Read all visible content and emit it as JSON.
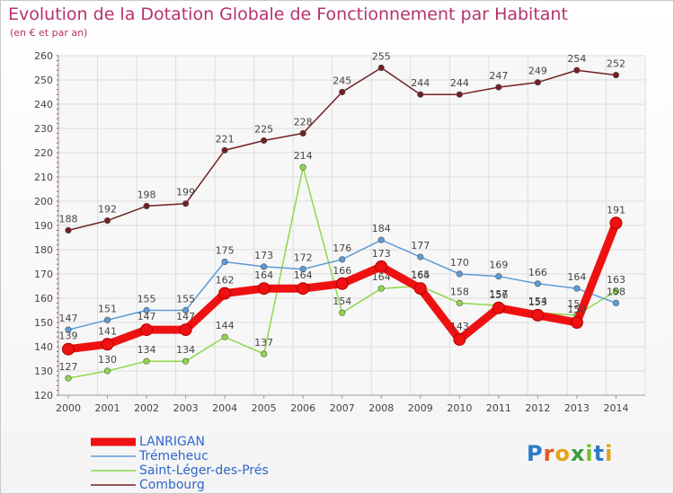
{
  "chart_data": {
    "type": "line",
    "title": "Evolution de la Dotation Globale de Fonctionnement par Habitant",
    "subtitle": "(en € et par an)",
    "categories": [
      "2000",
      "2001",
      "2002",
      "2003",
      "2004",
      "2005",
      "2006",
      "2007",
      "2008",
      "2009",
      "2010",
      "2011",
      "2012",
      "2013",
      "2014"
    ],
    "ylim": [
      120,
      260
    ],
    "yticks": [
      120,
      130,
      140,
      150,
      160,
      170,
      180,
      190,
      200,
      210,
      220,
      230,
      240,
      250,
      260
    ],
    "series": [
      {
        "name": "Combourg",
        "color": "#722020",
        "values": [
          188,
          192,
          198,
          199,
          221,
          225,
          228,
          245,
          255,
          244,
          244,
          247,
          249,
          254,
          252
        ],
        "labels": [
          "188",
          "192",
          "198",
          "199",
          "221",
          "225",
          "228",
          "245",
          "255",
          "244",
          "244",
          "247",
          "249",
          "254",
          "252"
        ]
      },
      {
        "name": "Saint-Léger-des-Prés",
        "color": "#8fd74a",
        "values": [
          127,
          130,
          134,
          134,
          144,
          137,
          214,
          154,
          164,
          165,
          158,
          157,
          154,
          153,
          163
        ],
        "labels": [
          "127",
          "130",
          "134",
          "134",
          "144",
          "137",
          "214",
          "154",
          "164",
          "165",
          "158",
          "157",
          "154",
          "153",
          "163"
        ]
      },
      {
        "name": "Trémeheuc",
        "color": "#5c9bd5",
        "values": [
          147,
          151,
          155,
          155,
          175,
          173,
          172,
          176,
          184,
          177,
          170,
          169,
          166,
          164,
          158
        ],
        "labels": [
          "147",
          "151",
          "155",
          "155",
          "175",
          "173",
          "172",
          "176",
          "184",
          "177",
          "170",
          "169",
          "166",
          "164",
          "158"
        ]
      },
      {
        "name": "LANRIGAN",
        "color": "#ee1111",
        "values": [
          139,
          141,
          147,
          147,
          162,
          164,
          164,
          166,
          173,
          164,
          143,
          156,
          153,
          150,
          191
        ],
        "labels": [
          "139",
          "141",
          "147",
          "147",
          "162",
          "164",
          "164",
          "166",
          "173",
          "164",
          "143",
          "156",
          "153",
          "150",
          "191"
        ]
      }
    ],
    "legend": [
      {
        "name": "LANRIGAN",
        "color": "#ee1111"
      },
      {
        "name": "Trémeheuc",
        "color": "#5c9bd5"
      },
      {
        "name": "Saint-Léger-des-Prés",
        "color": "#8fd74a"
      },
      {
        "name": "Combourg",
        "color": "#722020"
      }
    ]
  },
  "logo": {
    "letters": [
      "P",
      "r",
      "o",
      "x",
      "i",
      "t",
      "i"
    ]
  }
}
